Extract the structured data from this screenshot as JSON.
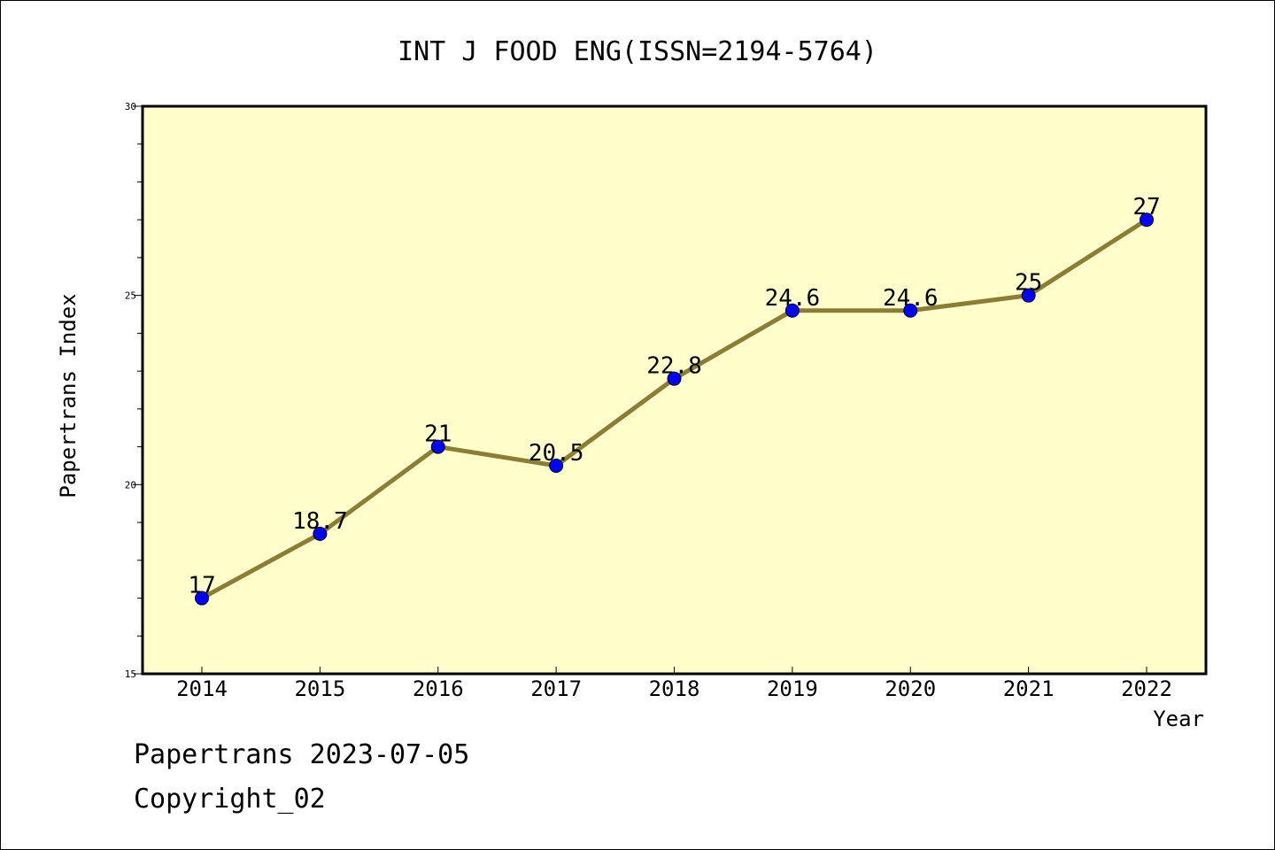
{
  "chart_data": {
    "type": "line",
    "title": "INT J FOOD ENG(ISSN=2194-5764)",
    "xlabel": "Year",
    "ylabel": "Papertrans Index",
    "categories": [
      "2014",
      "2015",
      "2016",
      "2017",
      "2018",
      "2019",
      "2020",
      "2021",
      "2022"
    ],
    "values": [
      17,
      18.7,
      21,
      20.5,
      22.8,
      24.6,
      24.6,
      25,
      27
    ],
    "value_labels": [
      "17",
      "18.7",
      "21",
      "20.5",
      "22.8",
      "24.6",
      "24.6",
      "25",
      "27"
    ],
    "ylim": [
      15,
      30
    ],
    "yticks": [
      15,
      20,
      25,
      30
    ],
    "grid": false,
    "colors": {
      "plot_background": "#ffffcc",
      "line": "#8b7d33",
      "marker": "#0000ff"
    }
  },
  "footer": {
    "line1": "Papertrans 2023-07-05",
    "line2": "Copyright_02"
  }
}
